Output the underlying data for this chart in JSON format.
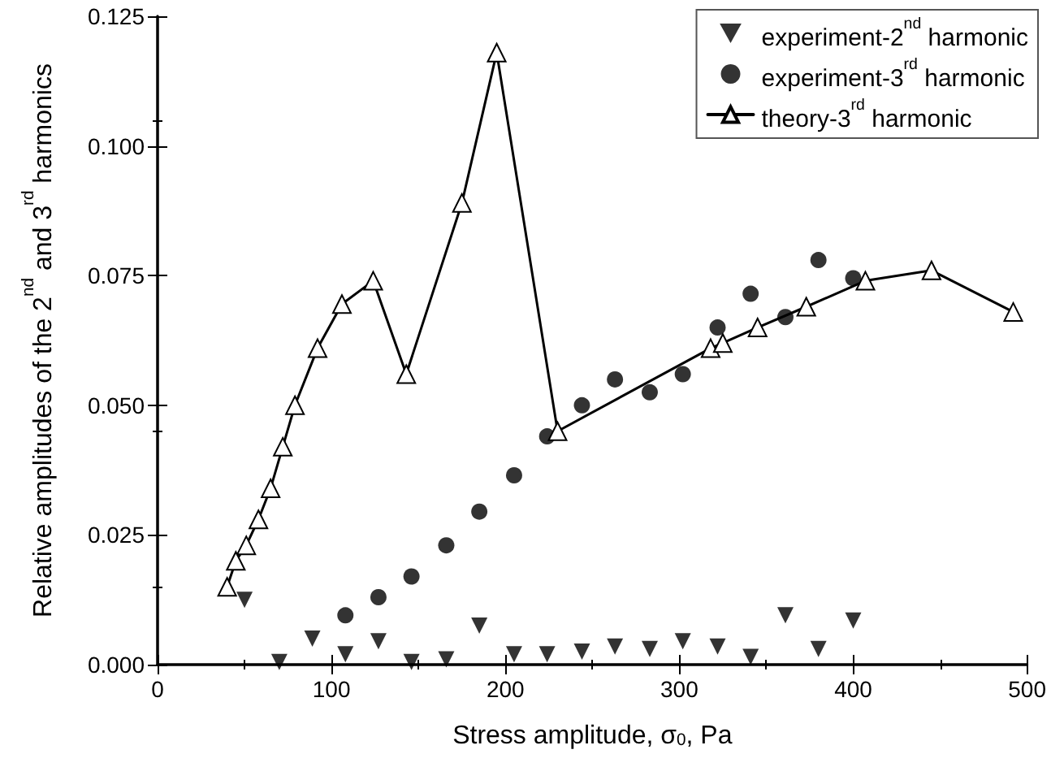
{
  "chart_data": {
    "type": "scatter",
    "xlabel": "Stress amplitude, σ$_{0}$, Pa",
    "ylabel": "Relative amplitudes of the 2$^{nd}$ and 3$^{rd}$ harmonics",
    "xlim": [
      0,
      500
    ],
    "xticks": [
      0,
      100,
      200,
      300,
      400,
      500
    ],
    "ylim": [
      0,
      0.125
    ],
    "yticks": [
      {
        "value": 0,
        "label": "0.000"
      },
      {
        "value": 0.025,
        "label": "0.025"
      },
      {
        "value": 0.05,
        "label": "0.050"
      },
      {
        "value": 0.075,
        "label": "0.075"
      },
      {
        "value": 0.1,
        "label": "0.100"
      },
      {
        "value": 0.125,
        "label": "0.125"
      }
    ],
    "grid": false,
    "legend": "top right",
    "series": [
      {
        "name": "experiment-2$^{nd}$ harmonic",
        "marker": "triangle-down",
        "color": "#000000",
        "x": [
          50,
          70,
          89,
          108,
          127,
          146,
          166,
          185,
          205,
          224,
          244,
          263,
          283,
          302,
          322,
          341,
          361,
          380,
          400
        ],
        "values": [
          0.0125,
          0.0005,
          0.005,
          0.002,
          0.0045,
          0.0005,
          0.001,
          0.0075,
          0.002,
          0.002,
          0.0025,
          0.0035,
          0.003,
          0.0045,
          0.0035,
          0.0015,
          0.0095,
          0.003,
          0.0085
        ]
      },
      {
        "name": "experiment-3$^{rd}$ harmonic",
        "marker": "circle",
        "color": "#000000",
        "x": [
          108,
          127,
          146,
          166,
          185,
          205,
          224,
          244,
          263,
          283,
          302,
          322,
          341,
          361,
          380,
          400
        ],
        "values": [
          0.0095,
          0.013,
          0.017,
          0.023,
          0.0295,
          0.0365,
          0.044,
          0.05,
          0.055,
          0.0525,
          0.056,
          0.065,
          0.0715,
          0.067,
          0.078,
          0.0745
        ]
      },
      {
        "name": "theory-3$^{rd}$ harmonic",
        "type": "line",
        "marker": "triangle",
        "line_style": "solid",
        "color": "#000000",
        "x": [
          40,
          45,
          51,
          58,
          65,
          72,
          79,
          92,
          106,
          124,
          143,
          175,
          195,
          230,
          318,
          325,
          345,
          373,
          407,
          445,
          492
        ],
        "values": [
          0.015,
          0.02,
          0.023,
          0.028,
          0.034,
          0.042,
          0.05,
          0.061,
          0.0695,
          0.074,
          0.056,
          0.089,
          0.118,
          0.045,
          0.061,
          0.062,
          0.065,
          0.069,
          0.074,
          0.076,
          0.068
        ]
      }
    ]
  }
}
